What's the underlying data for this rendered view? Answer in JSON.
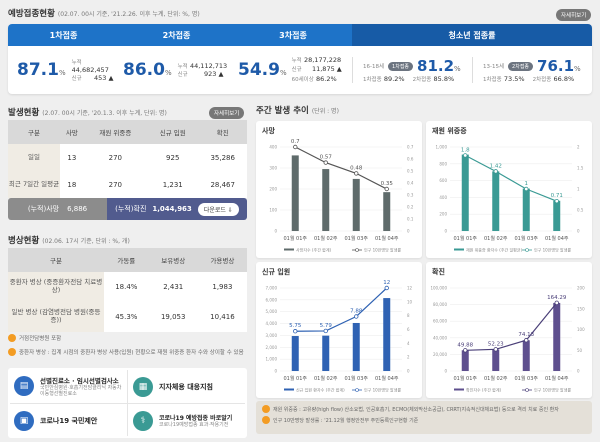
{
  "vaccination": {
    "title": "예방접종현황",
    "subtitle": "(02.07. 00시 기준, '21.2.26. 이후 누계, 단위: %, 명)",
    "more": "자세히보기",
    "tabs": [
      "1차접종",
      "2차접종",
      "3차접종",
      "청소년 접종률"
    ],
    "dose1": {
      "rate": "87.1",
      "unit": "%",
      "cum_label": "누적",
      "cum": "44,682,457",
      "new_label": "신규",
      "new": "453 ▲"
    },
    "dose2": {
      "rate": "86.0",
      "unit": "%",
      "cum_label": "누적",
      "cum": "44,112,713",
      "new_label": "신규",
      "new": "923 ▲"
    },
    "dose3": {
      "rate": "54.9",
      "unit": "%",
      "cum_label": "누적",
      "cum": "28,177,228",
      "new_label": "신규",
      "new": "11,875 ▲",
      "age_label": "60세이상",
      "age": "86.2%"
    },
    "teen1": {
      "age": "16-18세",
      "badge": "1차접종",
      "rate": "81.2",
      "unit": "%",
      "d1_label": "1차접종",
      "d1": "89.2%",
      "d2_label": "2차접종",
      "d2": "85.8%"
    },
    "teen2": {
      "age": "13-15세",
      "badge": "2차접종",
      "rate": "76.1",
      "unit": "%",
      "d1_label": "1차접종",
      "d1": "73.5%",
      "d2_label": "2차접종",
      "d2": "66.8%"
    }
  },
  "occurrence": {
    "title": "발생현황",
    "subtitle": "(2.07. 00시 기준, '20.1.3. 이후 누계, 단위: 명)",
    "more": "자세히보기",
    "headers": [
      "구분",
      "사망",
      "재원 위중증",
      "신규 입원",
      "확진"
    ],
    "rows": [
      [
        "일일",
        "13",
        "270",
        "925",
        "35,286"
      ],
      [
        "최근 7일간 일평균",
        "18",
        "270",
        "1,231",
        "28,467"
      ]
    ],
    "cum_death_label": "(누적)사망",
    "cum_death": "6,886",
    "cum_conf_label": "(누적)확진",
    "cum_conf": "1,044,963",
    "download": "다운로드 ⇩"
  },
  "beds": {
    "title": "병상현황",
    "subtitle": "(02.06. 17시 기준, 단위 : %, 개)",
    "headers": [
      "구분",
      "가동률",
      "보유병상",
      "가용병상"
    ],
    "rows": [
      [
        "중환자 병상 (중증환자전담 치료병상)",
        "18.4%",
        "2,431",
        "1,983"
      ],
      [
        "일반 병상 (감염병전담 병원(중등증))",
        "45.3%",
        "19,053",
        "10,416"
      ]
    ],
    "notes": [
      "거점전담병원 포함",
      "중환자 병상 : 집계 시점의 중환자 병상 사용(입원) 현황으로 재원 위중증 환자 수와 상이할 수 있음"
    ]
  },
  "links": [
    {
      "title": "선별진료소 · 임시선별검사소",
      "sub": "국민안심병원·호흡기전담클리닉 자동차이동형선별진료소",
      "icon": "clipboard-icon",
      "color": "#2f6cc0"
    },
    {
      "title": "지자체용 대응지침",
      "sub": "",
      "icon": "building-icon",
      "color": "#3a9a94"
    },
    {
      "title": "코로나19 국민제안",
      "sub": "",
      "icon": "id-card-icon",
      "color": "#2f6cc0"
    },
    {
      "title": "코로나19 예방접종 바로알기",
      "sub": "코로나19예방접종 효과·작용기전",
      "icon": "stethoscope-icon",
      "color": "#3a9a94"
    }
  ],
  "weekly": {
    "title": "주간 발생 추이",
    "subtitle": "(단위 : 명)",
    "notes": [
      "재원 위중증 : 고유량(high flow) 산소요법, 인공호흡기, ECMO(체외막산소공급), CRRT(지속적신대체요법) 등으로 격리 치료 중인 환자",
      "인구 10만명당 발생률 : '21.12월 행정안전부 주민등록인구현황 기준"
    ]
  },
  "chart_data": [
    {
      "type": "bar+line",
      "title": "사망",
      "categories": [
        "01월 01주",
        "01월 02주",
        "01월 03주",
        "01월 04주"
      ],
      "bar_values": [
        360,
        295,
        248,
        185
      ],
      "line_values": [
        0.7,
        0.57,
        0.48,
        0.35
      ],
      "ylim": [
        0,
        400
      ],
      "yticks": [
        0,
        100,
        200,
        300,
        400
      ],
      "y2lim": [
        0,
        0.7
      ],
      "y2ticks": [
        0,
        0.1,
        0.2,
        0.3,
        0.4,
        0.5,
        0.6,
        0.7
      ],
      "legend": [
        "사망자수 (주간 합계)",
        "인구 10만명당 발생률"
      ],
      "color": "#5f6b6b",
      "line_color": "#555"
    },
    {
      "type": "bar+line",
      "title": "재원 위중증",
      "categories": [
        "01월 01주",
        "01월 02주",
        "01월 03주",
        "01월 04주"
      ],
      "bar_values": [
        910,
        710,
        505,
        360
      ],
      "line_values": [
        1.8,
        1.42,
        1,
        0.71
      ],
      "ylim": [
        0,
        1000
      ],
      "yticks": [
        0,
        200,
        400,
        600,
        800,
        "1,000"
      ],
      "y2lim": [
        0,
        2
      ],
      "y2ticks": [
        0,
        0.5,
        1,
        1.5,
        2
      ],
      "legend": [
        "재원 위중증 환자수 (주간 일평균)",
        "인구 10만명당 발생률"
      ],
      "color": "#3a9a94",
      "line_color": "#3a9a94"
    },
    {
      "type": "bar+line",
      "title": "신규 입원",
      "categories": [
        "01월 01주",
        "01월 02주",
        "01월 03주",
        "01월 04주"
      ],
      "bar_values": [
        2950,
        2980,
        4050,
        6150
      ],
      "line_values": [
        5.75,
        5.79,
        7.88,
        12
      ],
      "ylim": [
        0,
        7000
      ],
      "yticks": [
        0,
        "1,000",
        "2,000",
        "3,000",
        "4,000",
        "5,000",
        "6,000",
        "7,000"
      ],
      "y2lim": [
        0,
        12
      ],
      "y2ticks": [
        0,
        2,
        4,
        6,
        8,
        10,
        12
      ],
      "legend": [
        "신규 입원 환자수 (주간 합계)",
        "인구 10만명당 발생률"
      ],
      "color": "#2f62b3",
      "line_color": "#2f62b3"
    },
    {
      "type": "bar+line",
      "title": "확진",
      "categories": [
        "01월 01주",
        "01월 02주",
        "01월 03주",
        "01월 04주"
      ],
      "bar_values": [
        25000,
        26000,
        37000,
        82000
      ],
      "line_values": [
        49.88,
        52.23,
        74.13,
        164.29
      ],
      "ylim": [
        0,
        100000
      ],
      "yticks": [
        0,
        "20,000",
        "40,000",
        "60,000",
        "80,000",
        "100,000"
      ],
      "y2lim": [
        0,
        200
      ],
      "y2ticks": [
        0,
        50,
        100,
        150,
        200
      ],
      "legend": [
        "확진자수 (주간 합계)",
        "인구 10만명당 발생률"
      ],
      "color": "#5e4f8e",
      "line_color": "#4a3f78"
    }
  ]
}
